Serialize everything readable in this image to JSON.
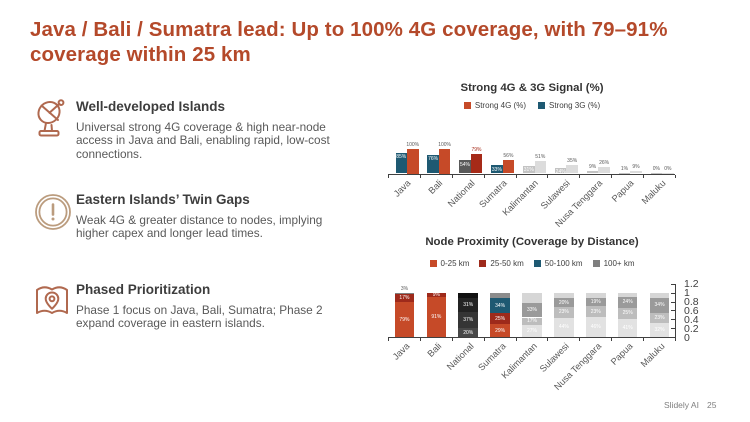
{
  "slide": {
    "title": "Java / Bali / Sumatra lead: Up to 100% 4G coverage, with 79–91% coverage within 25 km",
    "footer_brand": "Slidely AI",
    "footer_page": "25"
  },
  "colors": {
    "title": "#b4492a",
    "strong_4g": "#c64a28",
    "strong_3g": "#1e5972",
    "dark_red": "#9e2a1b",
    "gray_bar": "#d9d9d9",
    "icon_brick": "#b0694f",
    "icon_tan": "#bb9c7e",
    "axis": "#404040"
  },
  "insights": [
    {
      "icon": "satellite-dish-icon",
      "heading": "Well-developed Islands",
      "body": "Universal strong 4G coverage & high near-node access in Java and Bali, enabling rapid, low-cost connections."
    },
    {
      "icon": "alert-circle-icon",
      "heading": "Eastern Islands’ Twin Gaps",
      "body": "Weak 4G & greater distance to nodes, implying higher capex and longer lead times."
    },
    {
      "icon": "map-pin-icon",
      "heading": "Phased Prioritization",
      "body": "Phase 1 focus on Java, Bali, Sumatra; Phase 2 expand coverage in eastern islands."
    }
  ],
  "chart_data": [
    {
      "type": "bar",
      "title": "Strong 4G & 3G Signal (%)",
      "categories": [
        "Java",
        "Bali",
        "National",
        "Sumatra",
        "Kalimantan",
        "Sulawesi",
        "Nusa Tenggara",
        "Papua",
        "Maluku"
      ],
      "ylim": [
        0,
        100
      ],
      "grid": false,
      "legend_position": "top",
      "series": [
        {
          "name": "Strong 4G (%)",
          "slot": 1,
          "color": "#c64a28",
          "values": [
            100,
            100,
            79,
            56,
            51,
            35,
            26,
            9,
            0
          ],
          "bar_colors": [
            "#c64a28",
            "#c64a28",
            "#a62a18",
            "#c64a28",
            "#dcdcdc",
            "#dcdcdc",
            "#dcdcdc",
            "#dcdcdc",
            "#dcdcdc"
          ],
          "labels": [
            "100%",
            "100%",
            "79%",
            "56%",
            "51%",
            "35%",
            "26%",
            "9%",
            "0%"
          ],
          "label_pos": [
            "above",
            "above",
            "above",
            "above",
            "above",
            "above",
            "above",
            "above",
            "above"
          ],
          "label_colors": [
            "#595959",
            "#595959",
            "#a62a18",
            "#595959",
            "#595959",
            "#595959",
            "#595959",
            "#595959",
            "#595959"
          ]
        },
        {
          "name": "Strong 3G (%)",
          "slot": 0,
          "color": "#1e5972",
          "values": [
            85,
            76,
            54,
            33,
            31,
            24,
            9,
            1,
            0
          ],
          "bar_colors": [
            "#1e5972",
            "#1e5972",
            "#595959",
            "#1e5972",
            "#c3c3c3",
            "#c3c3c3",
            "#c3c3c3",
            "#c3c3c3",
            "#c3c3c3"
          ],
          "labels": [
            "85%",
            "76%",
            "54%",
            "33%",
            "31%",
            "24%",
            "9%",
            "1%",
            "0%"
          ],
          "label_pos": [
            "inside",
            "inside",
            "inside",
            "inside",
            "inside",
            "inside",
            "above",
            "above",
            "above"
          ],
          "label_colors": [
            "#ffffff",
            "#ffffff",
            "#ffffff",
            "#ffffff",
            "#ffffff",
            "#ffffff",
            "#595959",
            "#595959",
            "#595959"
          ]
        }
      ]
    },
    {
      "type": "bar",
      "stacked": true,
      "title": "Node Proximity (Coverage by Distance)",
      "categories": [
        "Java",
        "Bali",
        "National",
        "Sumatra",
        "Kalimantan",
        "Sulawesi",
        "Nusa Tenggara",
        "Papua",
        "Maluku"
      ],
      "ylim": [
        0,
        1.2
      ],
      "yticks": [
        "0",
        "0.2",
        "0.4",
        "0.6",
        "0.8",
        "1",
        "1.2"
      ],
      "yaxis_side": "right",
      "grid": false,
      "legend_position": "top",
      "series": [
        {
          "name": "0-25 km",
          "color": "#c64a28"
        },
        {
          "name": "25-50 km",
          "color": "#9e2a1b"
        },
        {
          "name": "50-100 km",
          "color": "#1e5972"
        },
        {
          "name": "100+ km",
          "color": "#7f7f7f"
        }
      ],
      "bars": [
        {
          "category": "Java",
          "values": [
            79,
            17,
            3,
            1
          ],
          "colors": [
            "#c64a28",
            "#9e2a1b",
            "#1e5972",
            "#7f7f7f"
          ],
          "labels": [
            "79%",
            "17%",
            null,
            null
          ],
          "top_label": "3%"
        },
        {
          "category": "Bali",
          "values": [
            91,
            9,
            0,
            0
          ],
          "colors": [
            "#c64a28",
            "#9e2a1b",
            "#1e5972",
            "#7f7f7f"
          ],
          "labels": [
            "91%",
            "9%",
            null,
            null
          ],
          "top_label": null
        },
        {
          "category": "National",
          "values": [
            20,
            37,
            31,
            12
          ],
          "colors": [
            "#474747",
            "#353535",
            "#232323",
            "#111111"
          ],
          "labels": [
            "20%",
            "37%",
            "31%",
            null
          ],
          "top_label": null
        },
        {
          "category": "Sumatra",
          "values": [
            29,
            25,
            34,
            12
          ],
          "colors": [
            "#c64a28",
            "#9e2a1b",
            "#1e5972",
            "#8c8c8c"
          ],
          "labels": [
            "29%",
            "25%",
            "34%",
            null
          ],
          "top_label": null
        },
        {
          "category": "Kalimantan",
          "values": [
            27,
            17,
            33,
            23
          ],
          "colors": [
            "#e2e2e2",
            "#bdbdbd",
            "#9a9a9a",
            "#d6d6d6"
          ],
          "labels": [
            "27%",
            "17%",
            "33%",
            null
          ],
          "top_label": null
        },
        {
          "category": "Sulawesi",
          "values": [
            44,
            23,
            20,
            13
          ],
          "colors": [
            "#e2e2e2",
            "#bdbdbd",
            "#9a9a9a",
            "#d6d6d6"
          ],
          "labels": [
            "44%",
            "23%",
            "20%",
            null
          ],
          "top_label": null
        },
        {
          "category": "Nusa Tenggara",
          "values": [
            46,
            23,
            19,
            12
          ],
          "colors": [
            "#e2e2e2",
            "#bdbdbd",
            "#9a9a9a",
            "#d6d6d6"
          ],
          "labels": [
            "46%",
            "23%",
            "19%",
            null
          ],
          "top_label": null
        },
        {
          "category": "Papua",
          "values": [
            41,
            25,
            24,
            10
          ],
          "colors": [
            "#e2e2e2",
            "#bdbdbd",
            "#9a9a9a",
            "#d6d6d6"
          ],
          "labels": [
            "41%",
            "25%",
            "24%",
            null
          ],
          "top_label": null
        },
        {
          "category": "Maluku",
          "values": [
            32,
            23,
            34,
            11
          ],
          "colors": [
            "#e2e2e2",
            "#bdbdbd",
            "#9a9a9a",
            "#d6d6d6"
          ],
          "labels": [
            "32%",
            "23%",
            "34%",
            null
          ],
          "top_label": null
        }
      ]
    }
  ]
}
